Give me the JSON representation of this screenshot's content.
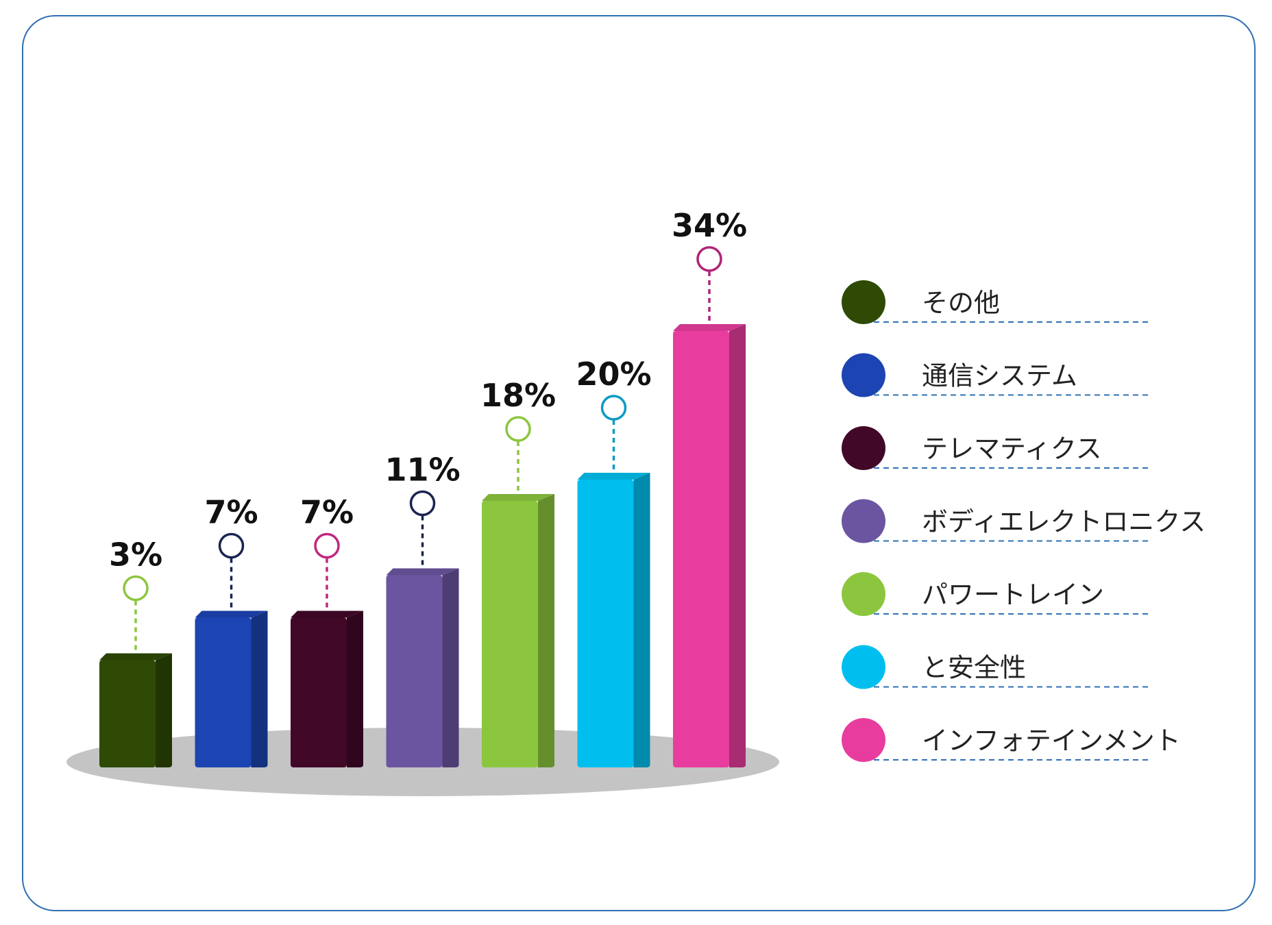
{
  "chart_data": {
    "type": "bar",
    "categories": [
      "その他",
      "通信システム",
      "テレマティクス",
      "ボディエレクトロニクス",
      "パワートレイン",
      "と安全性",
      "インフォテインメント"
    ],
    "values": [
      3,
      7,
      7,
      11,
      18,
      20,
      34
    ],
    "value_labels": [
      "3%",
      "7%",
      "7%",
      "11%",
      "18%",
      "20%",
      "34%"
    ],
    "unit": "%",
    "colors": [
      "#2e4a05",
      "#1c44b2",
      "#410828",
      "#6b55a0",
      "#8cc63f",
      "#00bfee",
      "#e83d9f"
    ],
    "marker_colors": [
      "#8cc63f",
      "#1a2450",
      "#c0267e",
      "#1a2450",
      "#8cc63f",
      "#0c9ac4",
      "#b02476"
    ],
    "legend": {
      "position": "right",
      "items": [
        {
          "label": "その他",
          "color": "#2e4a05"
        },
        {
          "label": "通信システム",
          "color": "#1c44b2"
        },
        {
          "label": "テレマティクス",
          "color": "#410828"
        },
        {
          "label": "ボディエレクトロニクス",
          "color": "#6b55a0"
        },
        {
          "label": "パワートレイン",
          "color": "#8cc63f"
        },
        {
          "label": "と安全性",
          "color": "#00bfee"
        },
        {
          "label": "インフォテインメント",
          "color": "#e83d9f"
        }
      ]
    },
    "ylim": [
      0,
      40
    ],
    "grid": false
  }
}
